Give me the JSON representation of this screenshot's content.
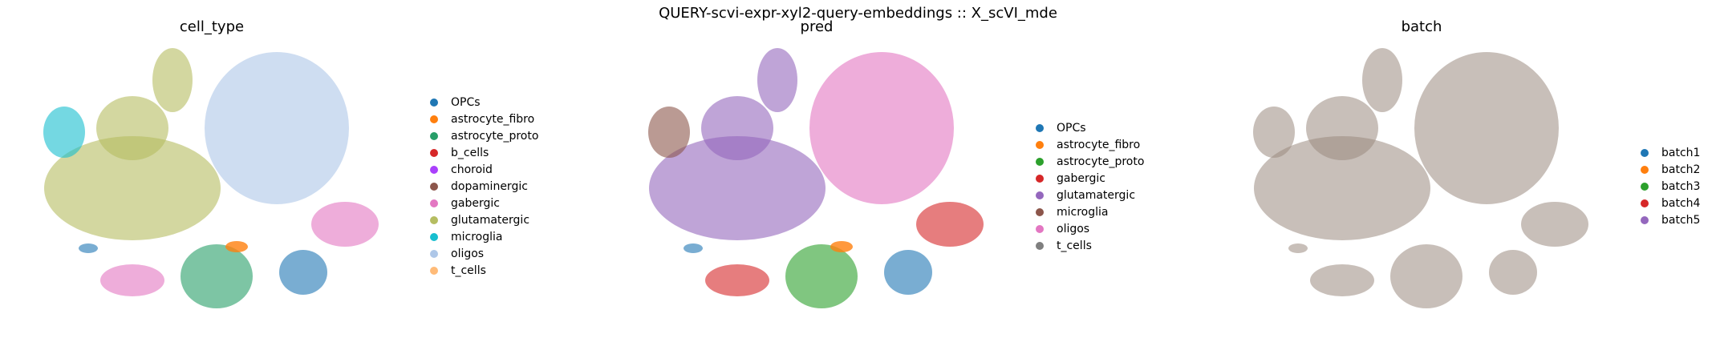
{
  "suptitle": "QUERY-scvi-expr-xyl2-query-embeddings :: X_scVI_mde",
  "chart_data": [
    {
      "type": "scatter",
      "title": "cell_type",
      "legend_placement": "right",
      "grid": false,
      "categories": [
        {
          "name": "OPCs",
          "color": "#1f77b4"
        },
        {
          "name": "astrocyte_fibro",
          "color": "#ff7f0e"
        },
        {
          "name": "astrocyte_proto",
          "color": "#279e68"
        },
        {
          "name": "b_cells",
          "color": "#d62728"
        },
        {
          "name": "choroid",
          "color": "#aa40fc"
        },
        {
          "name": "dopaminergic",
          "color": "#8c564b"
        },
        {
          "name": "gabergic",
          "color": "#e377c2"
        },
        {
          "name": "glutamatergic",
          "color": "#b5bd61"
        },
        {
          "name": "microglia",
          "color": "#17becf"
        },
        {
          "name": "oligos",
          "color": "#aec7e8"
        },
        {
          "name": "t_cells",
          "color": "#ffbb78"
        }
      ]
    },
    {
      "type": "scatter",
      "title": "pred",
      "legend_placement": "right",
      "grid": false,
      "categories": [
        {
          "name": "OPCs",
          "color": "#1f77b4"
        },
        {
          "name": "astrocyte_fibro",
          "color": "#ff7f0e"
        },
        {
          "name": "astrocyte_proto",
          "color": "#2ca02c"
        },
        {
          "name": "gabergic",
          "color": "#d62728"
        },
        {
          "name": "glutamatergic",
          "color": "#9467bd"
        },
        {
          "name": "microglia",
          "color": "#8c564b"
        },
        {
          "name": "oligos",
          "color": "#e377c2"
        },
        {
          "name": "t_cells",
          "color": "#7f7f7f"
        }
      ]
    },
    {
      "type": "scatter",
      "title": "batch",
      "legend_placement": "right",
      "grid": false,
      "categories": [
        {
          "name": "batch1",
          "color": "#1f77b4"
        },
        {
          "name": "batch2",
          "color": "#ff7f0e"
        },
        {
          "name": "batch3",
          "color": "#2ca02c"
        },
        {
          "name": "batch4",
          "color": "#d62728"
        },
        {
          "name": "batch5",
          "color": "#9467bd"
        }
      ]
    }
  ]
}
